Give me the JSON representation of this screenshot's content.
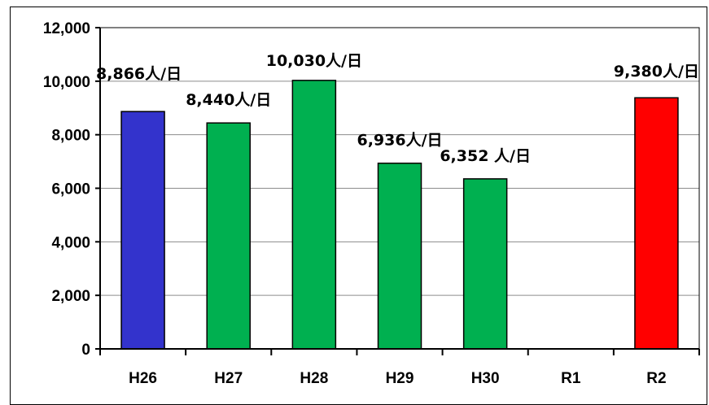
{
  "chart_data": {
    "type": "bar",
    "categories": [
      "H26",
      "H27",
      "H28",
      "H29",
      "H30",
      "R1",
      "R2"
    ],
    "values": [
      8866,
      8440,
      10030,
      6936,
      6352,
      null,
      9380
    ],
    "data_labels": [
      "8,866人/日",
      "8,440人/日",
      "10,030人/日",
      "6,936人/日",
      "6,352 人/日",
      "",
      "9,380人/日"
    ],
    "bar_colors": [
      "#3333cc",
      "#00b050",
      "#00b050",
      "#00b050",
      "#00b050",
      "#00b050",
      "#ff0000"
    ],
    "ylim": [
      0,
      12000
    ],
    "yticks": [
      0,
      2000,
      4000,
      6000,
      8000,
      10000,
      12000
    ],
    "ytick_labels": [
      "0",
      "2,000",
      "4,000",
      "6,000",
      "8,000",
      "10,000",
      "12,000"
    ],
    "grid": true,
    "title": "",
    "xlabel": "",
    "ylabel": ""
  }
}
